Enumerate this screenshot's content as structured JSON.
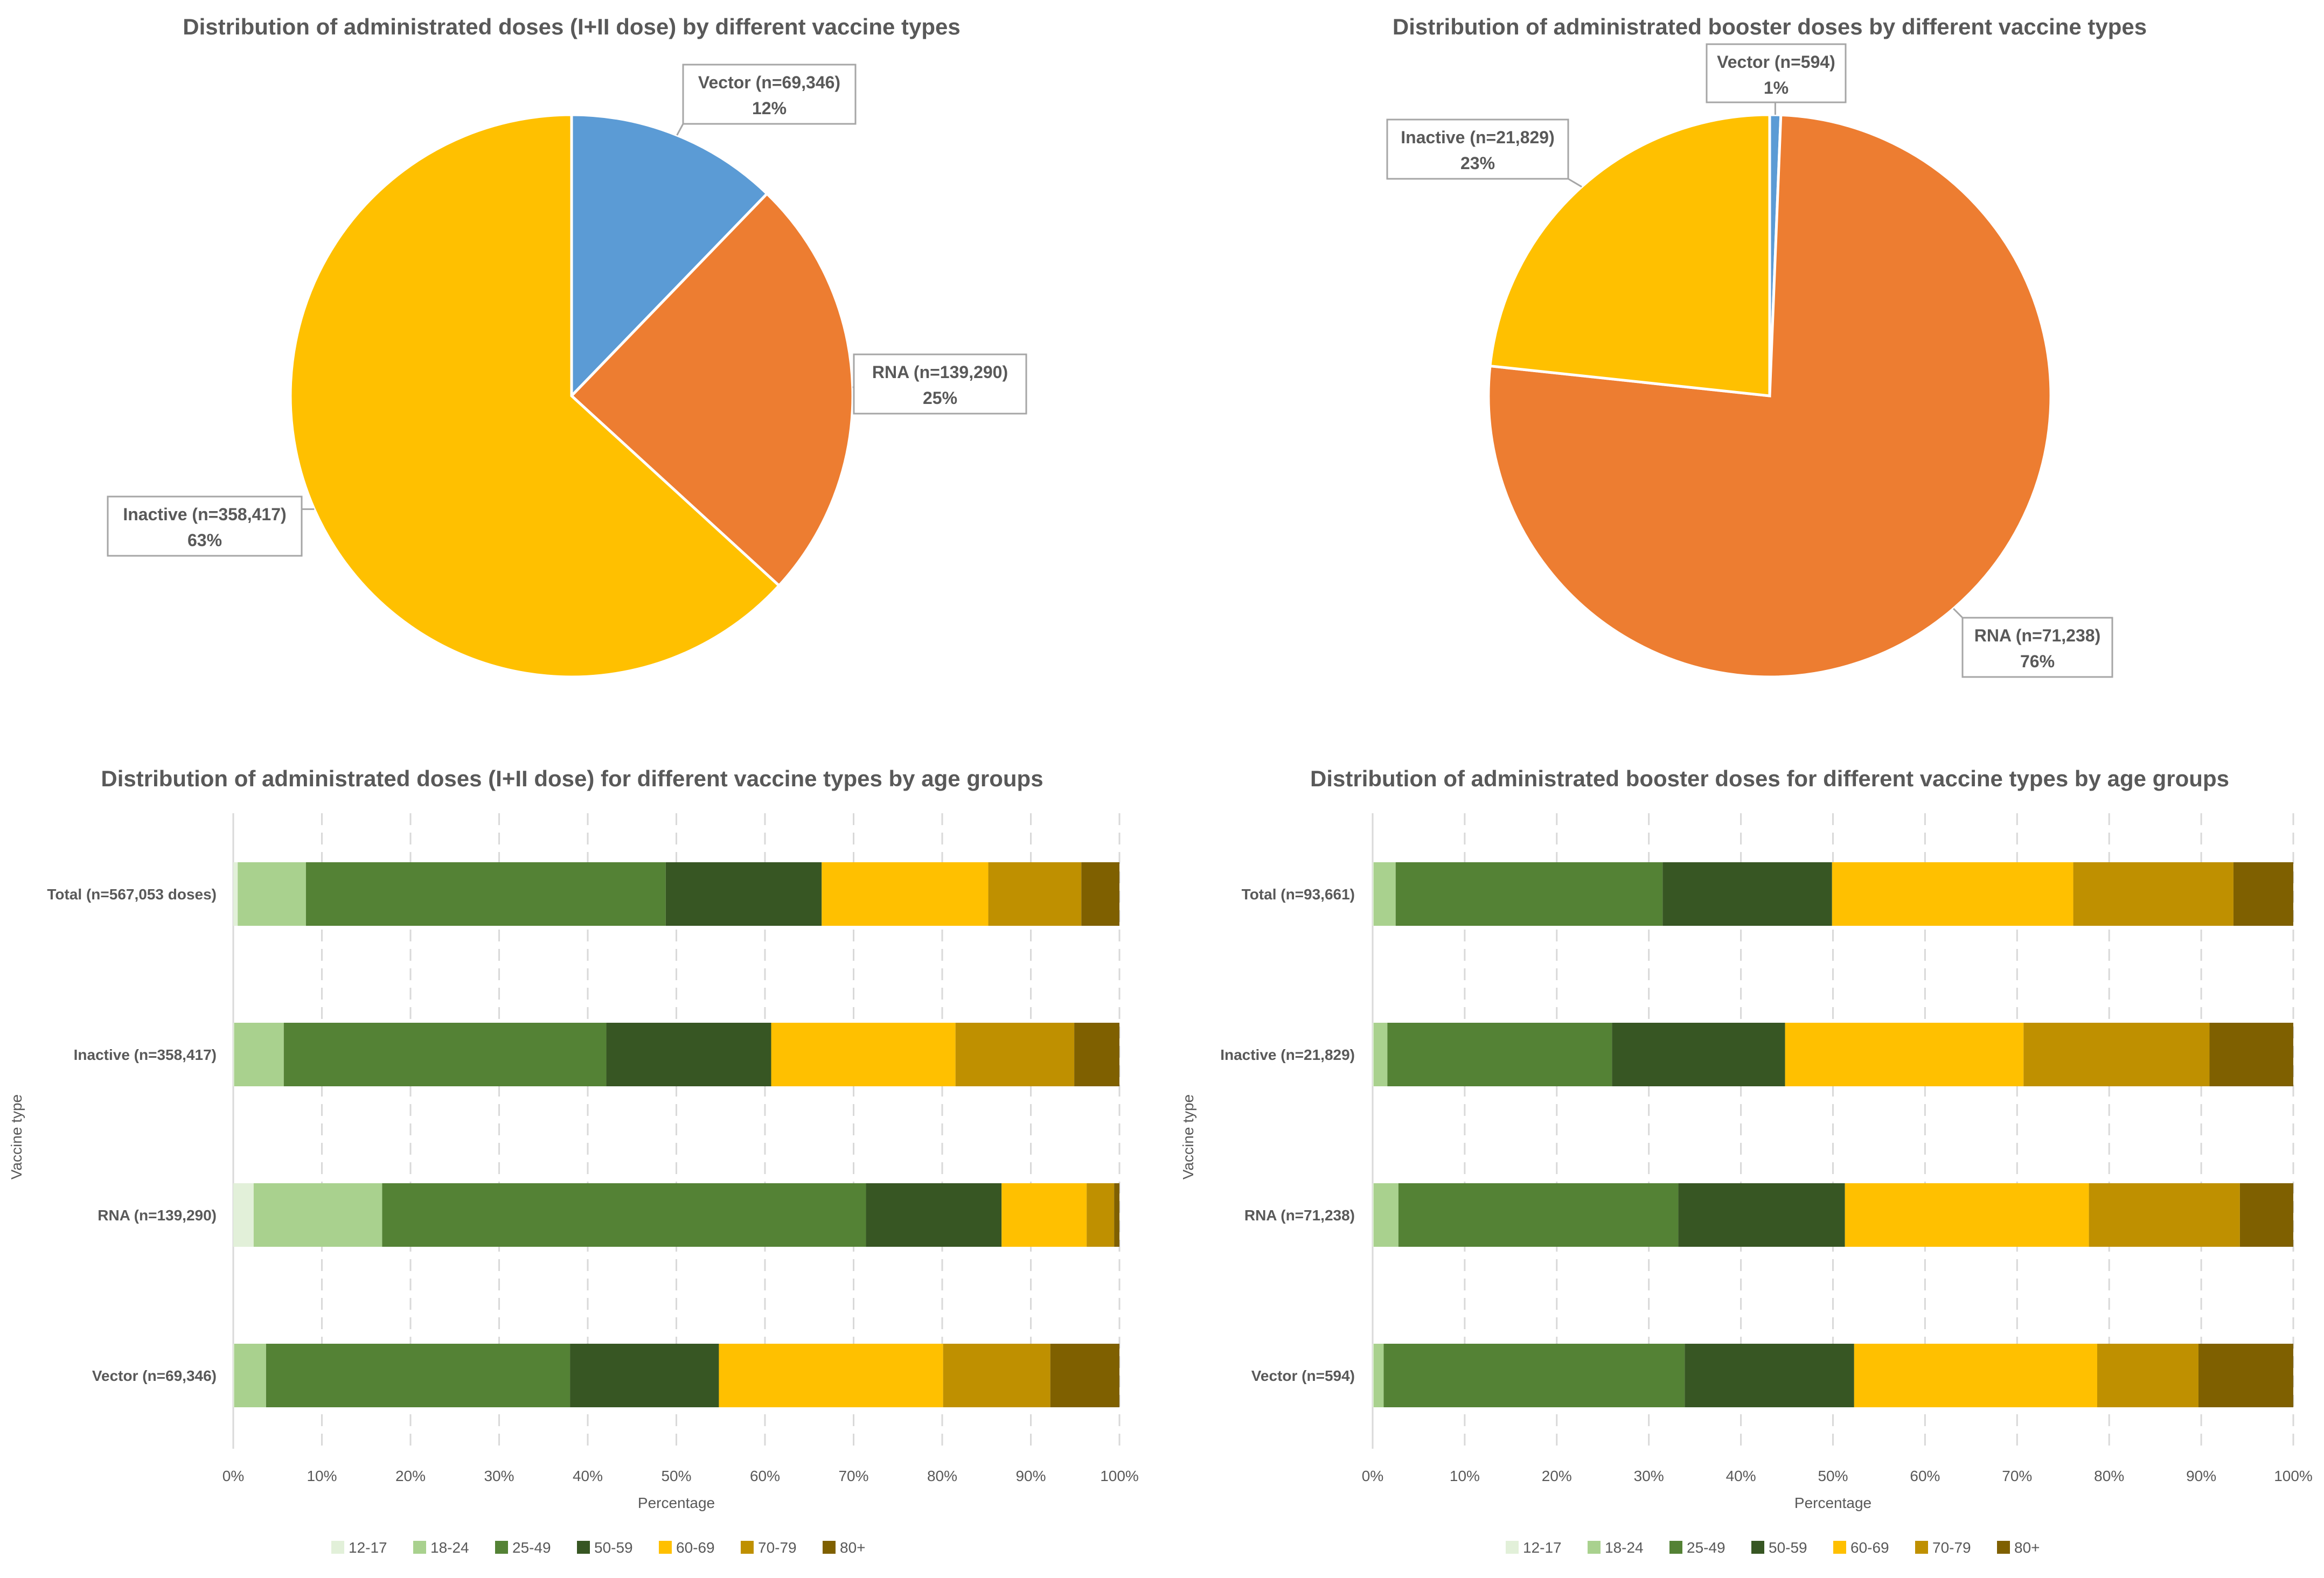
{
  "colors": {
    "Vector": "#5B9BD5",
    "RNA": "#ED7D31",
    "Inactive": "#FFC000",
    "12-17": "#E2F0D9",
    "18-24": "#A9D18E",
    "25-49": "#548235",
    "50-59": "#375623",
    "60-69": "#FFC000",
    "70-79": "#BF9000",
    "80+": "#7F6000"
  },
  "chart_data": [
    {
      "type": "pie",
      "title": "Distribution of administrated doses (I+II dose) by different vaccine types",
      "slices": [
        {
          "name": "Vector",
          "value": 69346,
          "label": "Vector (n=69,346)",
          "percent": "12%"
        },
        {
          "name": "RNA",
          "value": 139290,
          "label": "RNA (n=139,290)",
          "percent": "25%"
        },
        {
          "name": "Inactive",
          "value": 358417,
          "label": "Inactive (n=358,417)",
          "percent": "63%"
        }
      ]
    },
    {
      "type": "pie",
      "title": "Distribution of administrated booster doses by different vaccine types",
      "slices": [
        {
          "name": "Vector",
          "value": 594,
          "label": "Vector (n=594)",
          "percent": "1%"
        },
        {
          "name": "RNA",
          "value": 71238,
          "label": "RNA (n=71,238)",
          "percent": "76%"
        },
        {
          "name": "Inactive",
          "value": 21829,
          "label": "Inactive (n=21,829)",
          "percent": "23%"
        }
      ]
    },
    {
      "type": "bar",
      "orientation": "horizontal",
      "stacked": "percent",
      "title": "Distribution of administrated doses (I+II dose) for different vaccine types by age groups",
      "xlabel": "Percentage",
      "ylabel": "Vaccine type",
      "xlim": [
        0,
        100
      ],
      "xticks": [
        "0%",
        "10%",
        "20%",
        "30%",
        "40%",
        "50%",
        "60%",
        "70%",
        "80%",
        "90%",
        "100%"
      ],
      "legend": "bottom",
      "categories": [
        "Total (n=567,053 doses)",
        "Inactive (n=358,417)",
        "RNA (n=139,290)",
        "Vector (n=69,346)"
      ],
      "series": [
        {
          "name": "12-17",
          "values": [
            0.5,
            0.1,
            2.3,
            0.1
          ]
        },
        {
          "name": "18-24",
          "values": [
            7.7,
            5.6,
            14.5,
            3.6
          ]
        },
        {
          "name": "25-49",
          "values": [
            40.6,
            36.4,
            54.6,
            34.3
          ]
        },
        {
          "name": "50-59",
          "values": [
            17.6,
            18.6,
            15.3,
            16.8
          ]
        },
        {
          "name": "60-69",
          "values": [
            18.8,
            20.8,
            9.6,
            25.3
          ]
        },
        {
          "name": "70-79",
          "values": [
            10.5,
            13.4,
            3.1,
            12.1
          ]
        },
        {
          "name": "80+",
          "values": [
            4.3,
            5.1,
            0.6,
            7.8
          ]
        }
      ]
    },
    {
      "type": "bar",
      "orientation": "horizontal",
      "stacked": "percent",
      "title": "Distribution of administrated booster doses for different vaccine types by age groups",
      "xlabel": "Percentage",
      "ylabel": "Vaccine type",
      "xlim": [
        0,
        100
      ],
      "xticks": [
        "0%",
        "10%",
        "20%",
        "30%",
        "40%",
        "50%",
        "60%",
        "70%",
        "80%",
        "90%",
        "100%"
      ],
      "legend": "bottom",
      "categories": [
        "Total (n=93,661)",
        "Inactive (n=21,829)",
        "RNA (n=71,238)",
        "Vector (n=594)"
      ],
      "series": [
        {
          "name": "12-17",
          "values": [
            0.1,
            0.1,
            0.1,
            0.1
          ]
        },
        {
          "name": "18-24",
          "values": [
            2.4,
            1.5,
            2.7,
            1.1
          ]
        },
        {
          "name": "25-49",
          "values": [
            29.0,
            24.4,
            30.4,
            32.7
          ]
        },
        {
          "name": "50-59",
          "values": [
            18.4,
            18.8,
            18.1,
            18.4
          ]
        },
        {
          "name": "60-69",
          "values": [
            26.2,
            25.9,
            26.5,
            26.4
          ]
        },
        {
          "name": "70-79",
          "values": [
            17.4,
            20.2,
            16.4,
            11.0
          ]
        },
        {
          "name": "80+",
          "values": [
            6.5,
            9.1,
            5.8,
            10.3
          ]
        }
      ]
    }
  ]
}
